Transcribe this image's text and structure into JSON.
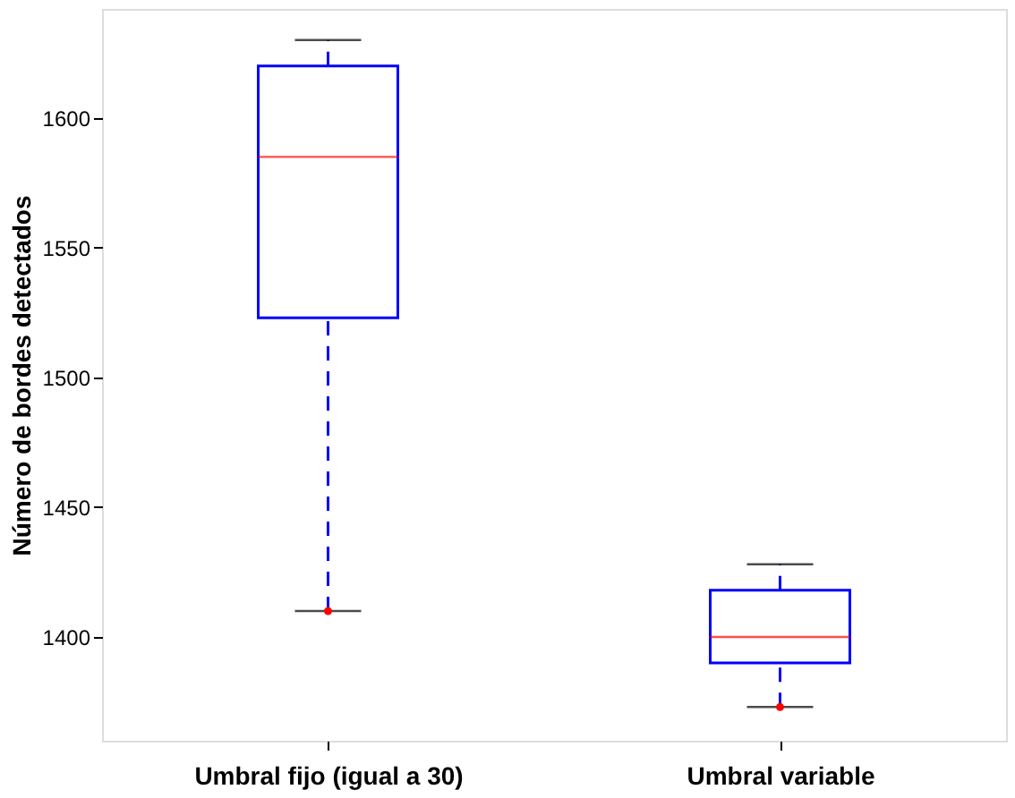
{
  "chart_data": {
    "type": "box",
    "ylabel": "Número de bordes detectados",
    "categories": [
      "Umbral fijo (igual a 30)",
      "Umbral variable"
    ],
    "boxes": [
      {
        "low": 1410,
        "q1": 1523,
        "median": 1585,
        "q3": 1620,
        "high": 1630,
        "outliers": [
          1410
        ]
      },
      {
        "low": 1373,
        "q1": 1390,
        "median": 1400,
        "q3": 1418,
        "high": 1428,
        "outliers": [
          1373
        ]
      }
    ],
    "color": "#0000ff",
    "line_style": "dashed",
    "marker": "circle",
    "ylim": [
      1360,
      1642
    ],
    "yticks": [
      1400,
      1450,
      1500,
      1550,
      1600
    ],
    "grid": false
  }
}
